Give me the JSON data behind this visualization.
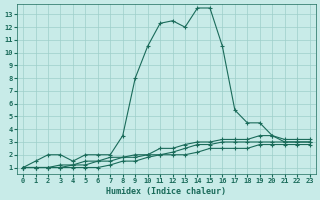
{
  "xlabel": "Humidex (Indice chaleur)",
  "background_color": "#c8ebe8",
  "grid_color": "#9ecfca",
  "line_color": "#1a6b5a",
  "xlim": [
    -0.5,
    23.5
  ],
  "ylim": [
    0.5,
    13.8
  ],
  "xticks": [
    0,
    1,
    2,
    3,
    4,
    5,
    6,
    7,
    8,
    9,
    10,
    11,
    12,
    13,
    14,
    15,
    16,
    17,
    18,
    19,
    20,
    21,
    22,
    23
  ],
  "yticks": [
    1,
    2,
    3,
    4,
    5,
    6,
    7,
    8,
    9,
    10,
    11,
    12,
    13
  ],
  "series": [
    {
      "x": [
        0,
        1,
        2,
        3,
        4,
        5,
        6,
        7,
        8,
        9,
        10,
        11,
        12,
        13,
        14,
        15,
        16,
        17,
        18,
        19,
        20,
        21,
        22,
        23
      ],
      "y": [
        1,
        1.5,
        2.0,
        2.0,
        1.5,
        2.0,
        2.0,
        2.0,
        3.5,
        8.0,
        10.5,
        12.3,
        12.5,
        12.0,
        13.5,
        13.5,
        10.5,
        5.5,
        4.5,
        4.5,
        3.5,
        3.0,
        3.0,
        3.0
      ]
    },
    {
      "x": [
        0,
        1,
        2,
        3,
        4,
        5,
        6,
        7,
        8,
        9,
        10,
        11,
        12,
        13,
        14,
        15,
        16,
        17,
        18,
        19,
        20,
        21,
        22,
        23
      ],
      "y": [
        1,
        1,
        1,
        1.2,
        1.2,
        1.5,
        1.5,
        1.8,
        1.8,
        2.0,
        2.0,
        2.5,
        2.5,
        2.8,
        3.0,
        3.0,
        3.2,
        3.2,
        3.2,
        3.5,
        3.5,
        3.2,
        3.2,
        3.2
      ]
    },
    {
      "x": [
        0,
        1,
        2,
        3,
        4,
        5,
        6,
        7,
        8,
        9,
        10,
        11,
        12,
        13,
        14,
        15,
        16,
        17,
        18,
        19,
        20,
        21,
        22,
        23
      ],
      "y": [
        1,
        1,
        1,
        1,
        1.2,
        1.2,
        1.5,
        1.5,
        1.8,
        1.8,
        2.0,
        2.0,
        2.2,
        2.5,
        2.8,
        2.8,
        3.0,
        3.0,
        3.0,
        3.0,
        3.0,
        3.0,
        3.0,
        3.0
      ]
    },
    {
      "x": [
        0,
        1,
        2,
        3,
        4,
        5,
        6,
        7,
        8,
        9,
        10,
        11,
        12,
        13,
        14,
        15,
        16,
        17,
        18,
        19,
        20,
        21,
        22,
        23
      ],
      "y": [
        1,
        1,
        1,
        1,
        1,
        1,
        1,
        1.2,
        1.5,
        1.5,
        1.8,
        2.0,
        2.0,
        2.0,
        2.2,
        2.5,
        2.5,
        2.5,
        2.5,
        2.8,
        2.8,
        2.8,
        2.8,
        2.8
      ]
    }
  ]
}
